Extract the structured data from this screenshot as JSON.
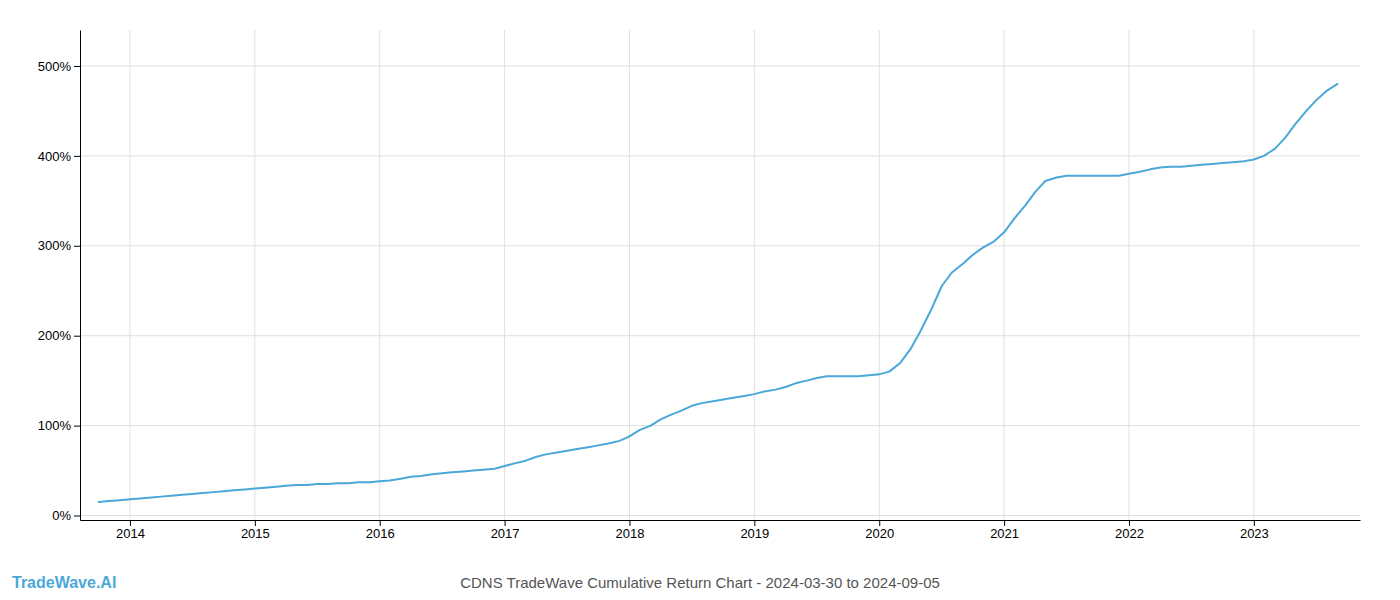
{
  "chart_data": {
    "type": "line",
    "title": "CDNS TradeWave Cumulative Return Chart - 2024-03-30 to 2024-09-05",
    "annotations": [
      "TradeWave.AI"
    ],
    "color": "#4aa8d8",
    "grid": true,
    "x": [
      2013.75,
      2013.83,
      2013.92,
      2014.0,
      2014.08,
      2014.17,
      2014.25,
      2014.33,
      2014.42,
      2014.5,
      2014.58,
      2014.67,
      2014.75,
      2014.83,
      2014.92,
      2015.0,
      2015.08,
      2015.17,
      2015.25,
      2015.33,
      2015.42,
      2015.5,
      2015.58,
      2015.67,
      2015.75,
      2015.83,
      2015.92,
      2016.0,
      2016.08,
      2016.17,
      2016.25,
      2016.33,
      2016.42,
      2016.5,
      2016.58,
      2016.67,
      2016.75,
      2016.83,
      2016.92,
      2017.0,
      2017.08,
      2017.17,
      2017.25,
      2017.33,
      2017.42,
      2017.5,
      2017.58,
      2017.67,
      2017.75,
      2017.83,
      2017.92,
      2018.0,
      2018.08,
      2018.17,
      2018.25,
      2018.33,
      2018.42,
      2018.5,
      2018.58,
      2018.67,
      2018.75,
      2018.83,
      2018.92,
      2019.0,
      2019.08,
      2019.17,
      2019.25,
      2019.33,
      2019.42,
      2019.5,
      2019.58,
      2019.67,
      2019.75,
      2019.83,
      2019.92,
      2020.0,
      2020.08,
      2020.17,
      2020.25,
      2020.33,
      2020.42,
      2020.5,
      2020.58,
      2020.67,
      2020.75,
      2020.83,
      2020.92,
      2021.0,
      2021.08,
      2021.17,
      2021.25,
      2021.33,
      2021.42,
      2021.5,
      2021.58,
      2021.67,
      2021.75,
      2021.83,
      2021.92,
      2022.0,
      2022.08,
      2022.17,
      2022.25,
      2022.33,
      2022.42,
      2022.5,
      2022.58,
      2022.67,
      2022.75,
      2022.83,
      2022.92,
      2023.0,
      2023.08,
      2023.17,
      2023.25,
      2023.33,
      2023.42,
      2023.5,
      2023.58,
      2023.67
    ],
    "values": [
      15,
      16,
      17,
      18,
      19,
      20,
      21,
      22,
      23,
      24,
      25,
      26,
      27,
      28,
      29,
      30,
      31,
      32,
      33,
      34,
      34,
      35,
      35,
      36,
      36,
      37,
      37,
      38,
      39,
      41,
      43,
      44,
      46,
      47,
      48,
      49,
      50,
      51,
      52,
      55,
      58,
      61,
      65,
      68,
      70,
      72,
      74,
      76,
      78,
      80,
      83,
      88,
      95,
      100,
      107,
      112,
      117,
      122,
      125,
      127,
      129,
      131,
      133,
      135,
      138,
      140,
      143,
      147,
      150,
      153,
      155,
      155,
      155,
      155,
      156,
      157,
      160,
      170,
      185,
      205,
      230,
      255,
      270,
      280,
      290,
      298,
      305,
      315,
      330,
      345,
      360,
      372,
      376,
      378,
      378,
      378,
      378,
      378,
      378,
      380,
      382,
      385,
      387,
      388,
      388,
      389,
      390,
      391,
      392,
      393,
      394,
      396,
      400,
      408,
      420,
      435,
      450,
      462,
      472,
      480
    ],
    "xlim": [
      2013.6,
      2023.85
    ],
    "ylim": [
      -5,
      540
    ],
    "xticks": [
      2014,
      2015,
      2016,
      2017,
      2018,
      2019,
      2020,
      2021,
      2022,
      2023
    ],
    "yticks": [
      {
        "value": 0,
        "label": "0%"
      },
      {
        "value": 100,
        "label": "100%"
      },
      {
        "value": 200,
        "label": "200%"
      },
      {
        "value": 300,
        "label": "300%"
      },
      {
        "value": 400,
        "label": "400%"
      },
      {
        "value": 500,
        "label": "500%"
      }
    ]
  }
}
